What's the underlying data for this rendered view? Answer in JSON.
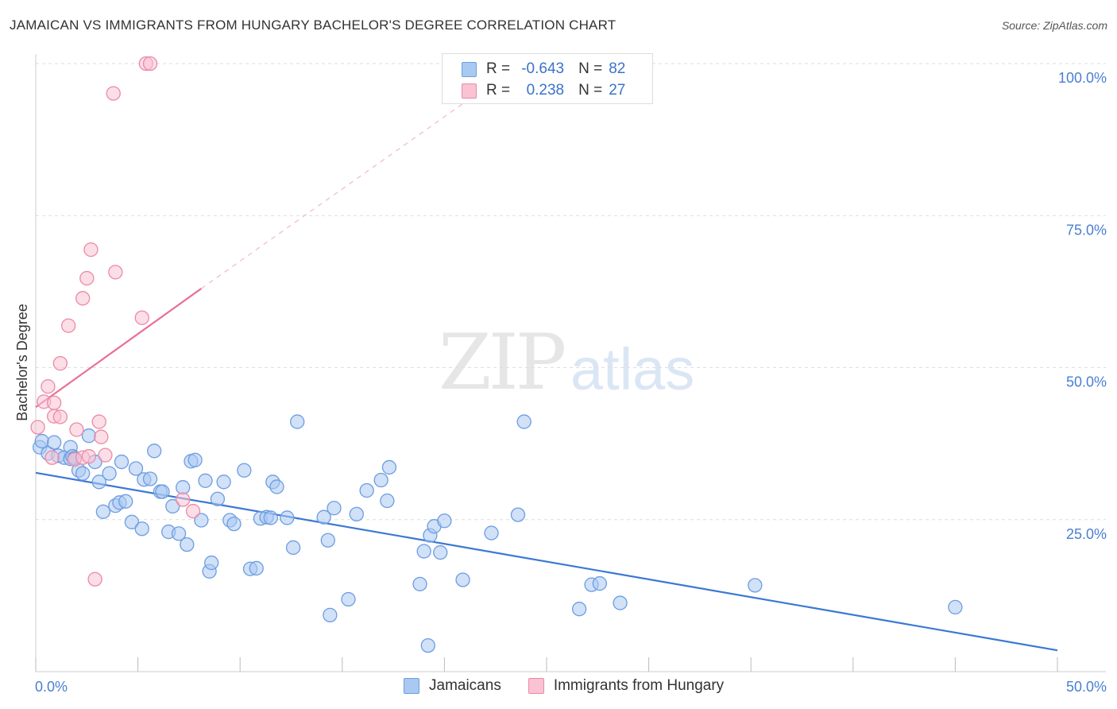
{
  "title": "JAMAICAN VS IMMIGRANTS FROM HUNGARY BACHELOR'S DEGREE CORRELATION CHART",
  "source": "Source: ZipAtlas.com",
  "watermark": {
    "zip": "ZIP",
    "atlas": "atlas"
  },
  "legend": {
    "rows": [
      {
        "r_label": "R =",
        "r_value": "-0.643",
        "n_label": "N =",
        "n_value": "82",
        "color": "#a9c9f2",
        "border": "#6d9de0"
      },
      {
        "r_label": "R =",
        "r_value": "0.238",
        "n_label": "N =",
        "n_value": "27",
        "color": "#f9c3d3",
        "border": "#ea8aa8"
      }
    ]
  },
  "bottom_legend": [
    {
      "label": "Jamaicans",
      "color": "#a9c9f2",
      "border": "#6d9de0"
    },
    {
      "label": "Immigrants from Hungary",
      "color": "#f9c3d3",
      "border": "#ea8aa8"
    }
  ],
  "chart_data": {
    "type": "scatter",
    "title": "JAMAICAN VS IMMIGRANTS FROM HUNGARY BACHELOR'S DEGREE CORRELATION CHART",
    "xlabel": "",
    "ylabel": "Bachelor's Degree",
    "xlim": [
      0,
      50
    ],
    "ylim": [
      0,
      100
    ],
    "x_tick_labels": [
      "0.0%",
      "50.0%"
    ],
    "y_ticks": [
      25,
      50,
      75,
      100
    ],
    "y_tick_labels": [
      "25.0%",
      "50.0%",
      "75.0%",
      "100.0%"
    ],
    "grid": true,
    "series": [
      {
        "name": "Jamaicans",
        "color": "#6d9de0",
        "fill": "#a9c9f2",
        "trend": {
          "x": [
            0,
            50
          ],
          "y": [
            32.7,
            3.5
          ],
          "color": "#3b78d4"
        },
        "points": [
          [
            0.2,
            36.9
          ],
          [
            0.3,
            37.9
          ],
          [
            0.6,
            35.9
          ],
          [
            0.9,
            37.7
          ],
          [
            1.1,
            35.5
          ],
          [
            1.4,
            35.2
          ],
          [
            1.7,
            35.0
          ],
          [
            1.7,
            36.9
          ],
          [
            1.8,
            35.4
          ],
          [
            1.9,
            35.1
          ],
          [
            2.1,
            33.1
          ],
          [
            2.3,
            32.6
          ],
          [
            2.6,
            38.8
          ],
          [
            2.9,
            34.5
          ],
          [
            3.1,
            31.2
          ],
          [
            3.3,
            26.3
          ],
          [
            3.6,
            32.6
          ],
          [
            3.9,
            27.3
          ],
          [
            4.1,
            27.8
          ],
          [
            4.2,
            34.5
          ],
          [
            4.4,
            28.0
          ],
          [
            4.7,
            24.6
          ],
          [
            4.9,
            33.4
          ],
          [
            5.2,
            23.5
          ],
          [
            5.3,
            31.6
          ],
          [
            5.6,
            31.7
          ],
          [
            5.8,
            36.3
          ],
          [
            6.1,
            29.6
          ],
          [
            6.2,
            29.6
          ],
          [
            6.5,
            23.0
          ],
          [
            6.7,
            27.2
          ],
          [
            7.0,
            22.7
          ],
          [
            7.2,
            30.3
          ],
          [
            7.4,
            20.9
          ],
          [
            7.6,
            34.6
          ],
          [
            7.8,
            34.8
          ],
          [
            8.1,
            24.9
          ],
          [
            8.3,
            31.4
          ],
          [
            8.5,
            16.5
          ],
          [
            8.6,
            17.9
          ],
          [
            8.9,
            28.4
          ],
          [
            9.2,
            31.2
          ],
          [
            9.5,
            24.9
          ],
          [
            9.7,
            24.3
          ],
          [
            10.2,
            33.1
          ],
          [
            10.5,
            16.9
          ],
          [
            10.8,
            17.0
          ],
          [
            11.0,
            25.2
          ],
          [
            11.3,
            25.4
          ],
          [
            11.5,
            25.3
          ],
          [
            11.6,
            31.2
          ],
          [
            11.8,
            30.4
          ],
          [
            12.3,
            25.3
          ],
          [
            12.6,
            20.4
          ],
          [
            12.8,
            41.1
          ],
          [
            14.1,
            25.4
          ],
          [
            14.3,
            21.6
          ],
          [
            14.4,
            9.3
          ],
          [
            14.6,
            26.9
          ],
          [
            15.3,
            11.9
          ],
          [
            15.7,
            25.9
          ],
          [
            16.2,
            29.8
          ],
          [
            16.9,
            31.5
          ],
          [
            17.2,
            28.1
          ],
          [
            17.3,
            33.6
          ],
          [
            18.8,
            14.4
          ],
          [
            19.0,
            19.8
          ],
          [
            19.3,
            22.4
          ],
          [
            19.5,
            23.9
          ],
          [
            19.8,
            19.6
          ],
          [
            20.0,
            24.8
          ],
          [
            20.9,
            15.1
          ],
          [
            22.3,
            22.8
          ],
          [
            23.6,
            25.8
          ],
          [
            23.9,
            41.1
          ],
          [
            26.6,
            10.3
          ],
          [
            27.2,
            14.3
          ],
          [
            27.6,
            14.5
          ],
          [
            28.6,
            11.3
          ],
          [
            35.2,
            14.2
          ],
          [
            45.0,
            10.6
          ],
          [
            19.2,
            4.3
          ]
        ]
      },
      {
        "name": "Immigrants from Hungary",
        "color": "#ea8aa8",
        "fill": "#f9c3d3",
        "trend": {
          "x": [
            0,
            8.1
          ],
          "y": [
            43.5,
            63.0
          ],
          "color": "#e86f98",
          "dashed_extension_to": [
            22,
            96
          ]
        },
        "points": [
          [
            0.1,
            40.2
          ],
          [
            0.4,
            44.4
          ],
          [
            0.6,
            46.9
          ],
          [
            0.8,
            35.2
          ],
          [
            0.9,
            44.2
          ],
          [
            0.9,
            42.0
          ],
          [
            1.2,
            41.9
          ],
          [
            1.2,
            50.7
          ],
          [
            1.6,
            56.9
          ],
          [
            1.9,
            34.9
          ],
          [
            2.0,
            39.8
          ],
          [
            2.3,
            35.2
          ],
          [
            2.3,
            61.4
          ],
          [
            2.5,
            64.7
          ],
          [
            2.6,
            35.4
          ],
          [
            2.7,
            69.4
          ],
          [
            2.9,
            15.2
          ],
          [
            3.1,
            41.1
          ],
          [
            3.2,
            38.6
          ],
          [
            3.4,
            35.6
          ],
          [
            3.8,
            95.1
          ],
          [
            3.9,
            65.7
          ],
          [
            5.2,
            58.2
          ],
          [
            5.4,
            100.0
          ],
          [
            5.6,
            100.0
          ],
          [
            7.2,
            28.3
          ],
          [
            7.7,
            26.4
          ]
        ]
      }
    ]
  }
}
